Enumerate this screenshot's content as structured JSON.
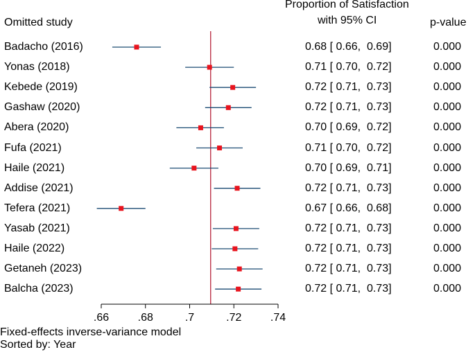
{
  "headers": {
    "study": "Omitted study",
    "estimate_line1": "Proportion of Satisfaction",
    "estimate_line2": "with 95% CI",
    "pvalue": "p-value"
  },
  "footer": {
    "model": "Fixed-effects inverse-variance model",
    "sort": "Sorted by: Year"
  },
  "colors": {
    "ci_line": "#1a4a72",
    "marker": "#e8141e",
    "reference_line": "#b0102a"
  },
  "chart_data": {
    "type": "forest",
    "title": "",
    "xlabel": "",
    "xlim": [
      0.655,
      0.745
    ],
    "xticks": [
      0.66,
      0.68,
      0.7,
      0.72,
      0.74
    ],
    "xtick_labels": [
      ".66",
      ".68",
      ".7",
      ".72",
      ".74"
    ],
    "reference_line": 0.7095,
    "rows": [
      {
        "study": "Badacho (2016)",
        "est": 0.676,
        "lo": 0.665,
        "hi": 0.687,
        "ci_text": "0.68 [ 0.66,  0.69]",
        "p": "0.000"
      },
      {
        "study": "Yonas (2018)",
        "est": 0.709,
        "lo": 0.698,
        "hi": 0.72,
        "ci_text": "0.71 [ 0.70,  0.72]",
        "p": "0.000"
      },
      {
        "study": "Kebede (2019)",
        "est": 0.7195,
        "lo": 0.709,
        "hi": 0.73,
        "ci_text": "0.72 [ 0.71,  0.73]",
        "p": "0.000"
      },
      {
        "study": "Gashaw (2020)",
        "est": 0.7175,
        "lo": 0.707,
        "hi": 0.728,
        "ci_text": "0.72 [ 0.71,  0.73]",
        "p": "0.000"
      },
      {
        "study": "Abera (2020)",
        "est": 0.705,
        "lo": 0.694,
        "hi": 0.7155,
        "ci_text": "0.70 [ 0.69,  0.72]",
        "p": "0.000"
      },
      {
        "study": "Fufa (2021)",
        "est": 0.7135,
        "lo": 0.703,
        "hi": 0.724,
        "ci_text": "0.71 [ 0.70,  0.72]",
        "p": "0.000"
      },
      {
        "study": "Haile (2021)",
        "est": 0.702,
        "lo": 0.691,
        "hi": 0.713,
        "ci_text": "0.70 [ 0.69,  0.71]",
        "p": "0.000"
      },
      {
        "study": "Addise (2021)",
        "est": 0.7215,
        "lo": 0.711,
        "hi": 0.732,
        "ci_text": "0.72 [ 0.71,  0.73]",
        "p": "0.000"
      },
      {
        "study": "Tefera (2021)",
        "est": 0.669,
        "lo": 0.658,
        "hi": 0.68,
        "ci_text": "0.67 [ 0.66,  0.68]",
        "p": "0.000"
      },
      {
        "study": "Yasab (2021)",
        "est": 0.721,
        "lo": 0.7105,
        "hi": 0.7315,
        "ci_text": "0.72 [ 0.71,  0.73]",
        "p": "0.000"
      },
      {
        "study": "Haile (2022)",
        "est": 0.7205,
        "lo": 0.71,
        "hi": 0.731,
        "ci_text": "0.72 [ 0.71,  0.73]",
        "p": "0.000"
      },
      {
        "study": "Getaneh (2023)",
        "est": 0.7225,
        "lo": 0.712,
        "hi": 0.733,
        "ci_text": "0.72 [ 0.71,  0.73]",
        "p": "0.000"
      },
      {
        "study": "Balcha (2023)",
        "est": 0.722,
        "lo": 0.7115,
        "hi": 0.7325,
        "ci_text": "0.72 [ 0.71,  0.73]",
        "p": "0.000"
      }
    ]
  }
}
